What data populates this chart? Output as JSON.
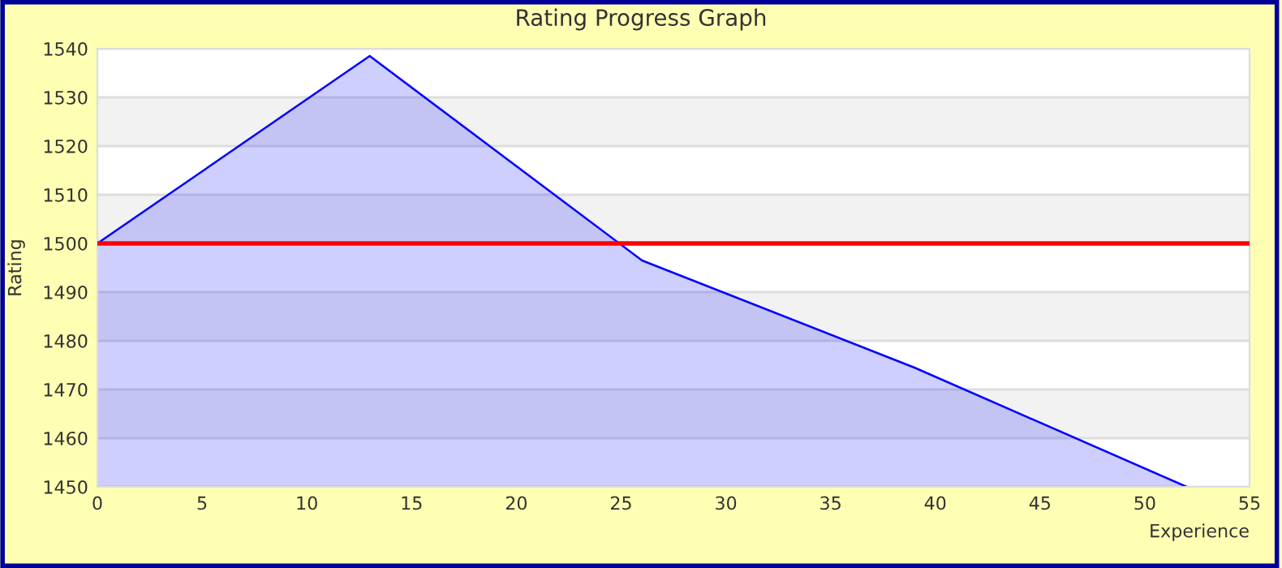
{
  "chart_data": {
    "type": "area",
    "title": "Rating Progress Graph",
    "xlabel": "Experience",
    "ylabel": "Rating",
    "x": [
      0,
      13,
      26,
      39,
      52
    ],
    "series": [
      {
        "color": "#0000ff",
        "values": [
          1500,
          1538.5,
          1496.5,
          1474.5,
          1450
        ]
      }
    ],
    "xlim": [
      0,
      55
    ],
    "xticks": [
      0,
      5,
      10,
      15,
      20,
      25,
      30,
      35,
      40,
      45,
      50,
      55
    ],
    "ylim": [
      1450,
      1540
    ],
    "yticks": [
      1450,
      1460,
      1470,
      1480,
      1490,
      1500,
      1510,
      1520,
      1530,
      1540
    ],
    "ref_lines": [
      {
        "axis": "y",
        "value": 1500,
        "color": "#ff0000"
      }
    ],
    "grid": "y",
    "legend": false
  }
}
